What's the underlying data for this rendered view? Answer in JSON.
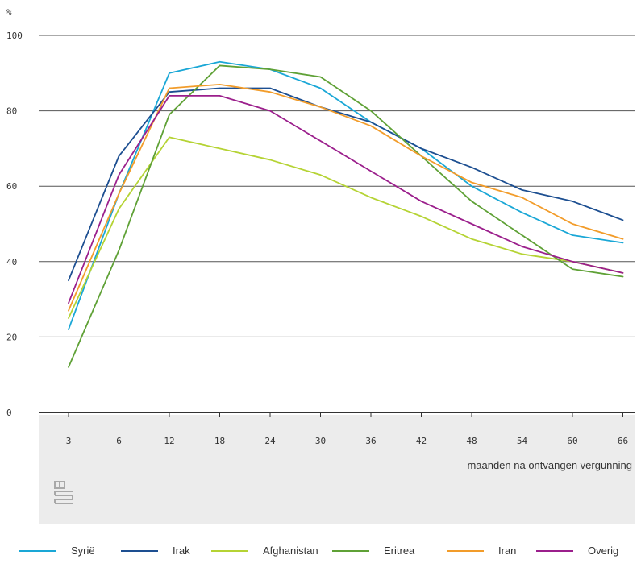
{
  "chart_data": {
    "type": "line",
    "ylabel": "%",
    "xlabel": "maanden na ontvangen vergunning",
    "ylim": [
      0,
      100
    ],
    "yticks": [
      0,
      20,
      40,
      60,
      80,
      100
    ],
    "categories": [
      "3",
      "6",
      "12",
      "18",
      "24",
      "30",
      "36",
      "42",
      "48",
      "54",
      "60",
      "66"
    ],
    "grid": true,
    "legend_position": "bottom",
    "series": [
      {
        "name": "Syrië",
        "color": "#1aa7d6",
        "values": [
          22,
          58,
          90,
          93,
          91,
          86,
          77,
          70,
          60,
          53,
          47,
          45
        ]
      },
      {
        "name": "Irak",
        "color": "#1d4f91",
        "values": [
          35,
          68,
          85,
          86,
          86,
          81,
          77,
          70,
          65,
          59,
          56,
          51
        ]
      },
      {
        "name": "Afghanistan",
        "color": "#b5d334",
        "values": [
          25,
          54,
          73,
          70,
          67,
          63,
          57,
          52,
          46,
          42,
          40,
          37
        ]
      },
      {
        "name": "Eritrea",
        "color": "#5fa136",
        "values": [
          12,
          43,
          79,
          92,
          91,
          89,
          80,
          68,
          56,
          47,
          38,
          36
        ]
      },
      {
        "name": "Iran",
        "color": "#f29c2a",
        "values": [
          27,
          58,
          86,
          87,
          85,
          81,
          76,
          68,
          61,
          57,
          50,
          46
        ]
      },
      {
        "name": "Overig",
        "color": "#9b1f8c",
        "values": [
          29,
          63,
          84,
          84,
          80,
          72,
          64,
          56,
          50,
          44,
          40,
          37
        ]
      }
    ]
  }
}
